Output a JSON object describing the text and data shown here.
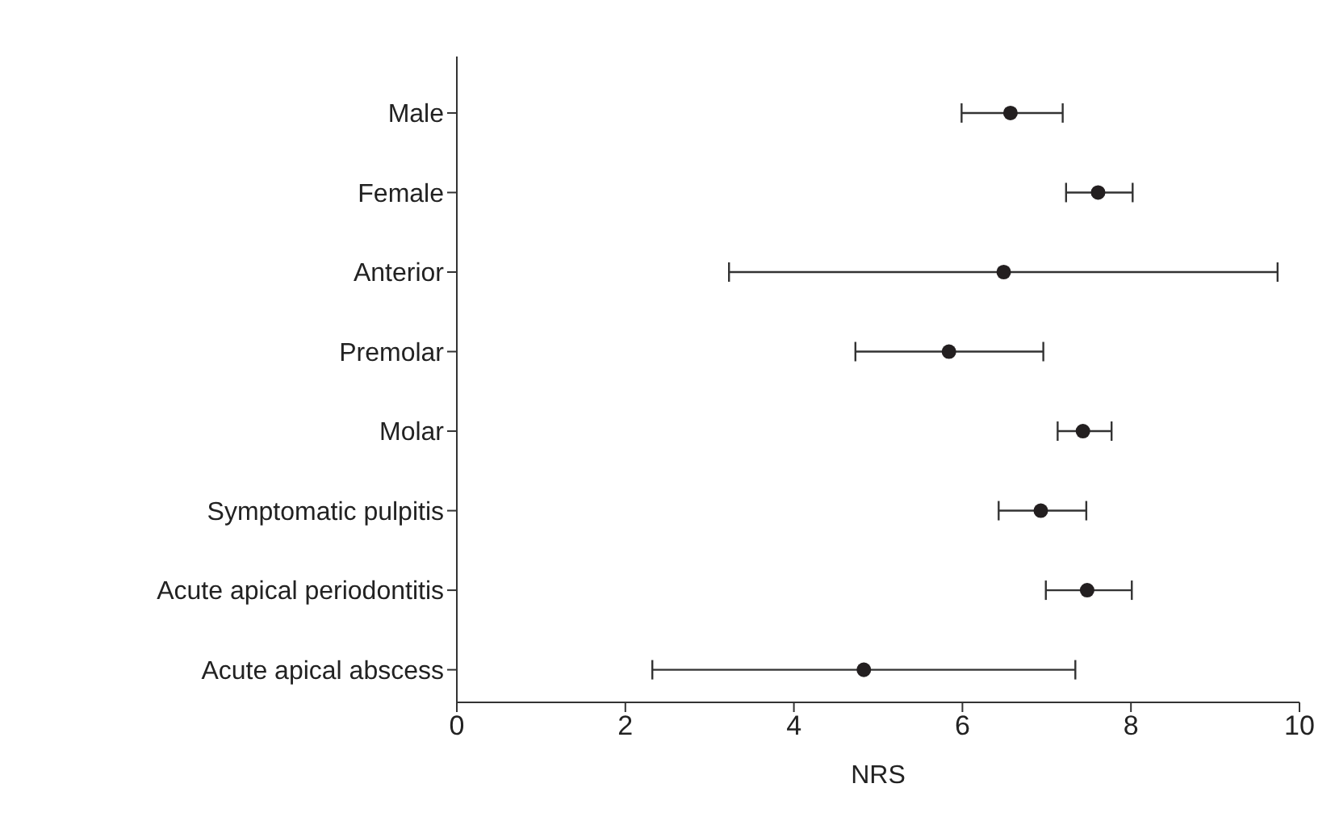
{
  "chart_data": {
    "type": "scatter",
    "orientation": "horizontal",
    "xlabel": "NRS",
    "categories": [
      "Male",
      "Female",
      "Anterior",
      "Premolar",
      "Molar",
      "Symptomatic pulpitis",
      "Acute apical periodontitis",
      "Acute apical abscess"
    ],
    "values": [
      6.57,
      7.61,
      6.49,
      5.84,
      7.43,
      6.93,
      7.48,
      4.83
    ],
    "errors": [
      [
        5.99,
        7.19
      ],
      [
        7.23,
        8.02
      ],
      [
        3.23,
        9.74
      ],
      [
        4.73,
        6.96
      ],
      [
        7.13,
        7.77
      ],
      [
        6.43,
        7.47
      ],
      [
        6.99,
        8.01
      ],
      [
        2.32,
        7.34
      ]
    ],
    "color": "#231f20",
    "marker": "circle",
    "xlim": [
      0,
      10
    ],
    "xticks": [
      0,
      2,
      4,
      6,
      8,
      10
    ],
    "grid": false,
    "legend": false
  }
}
